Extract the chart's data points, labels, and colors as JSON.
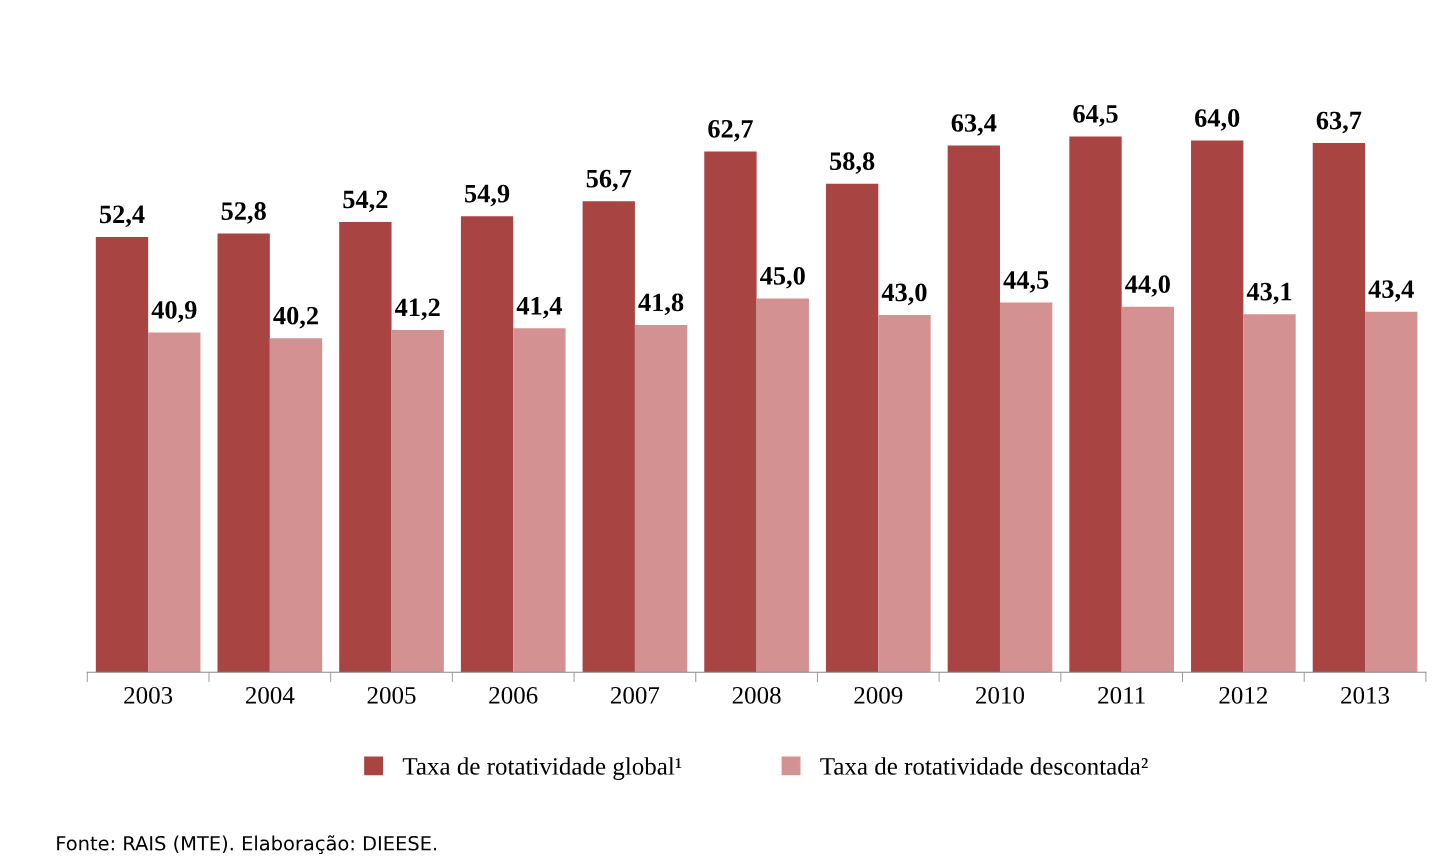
{
  "chart_data": {
    "type": "bar",
    "categories": [
      "2003",
      "2004",
      "2005",
      "2006",
      "2007",
      "2008",
      "2009",
      "2010",
      "2011",
      "2012",
      "2013"
    ],
    "series": [
      {
        "name": "Taxa de rotatividade global¹",
        "color": "#a84442",
        "values": [
          52.4,
          52.8,
          54.2,
          54.9,
          56.7,
          62.7,
          58.8,
          63.4,
          64.5,
          64.0,
          63.7
        ],
        "value_labels": [
          "52,4",
          "52,8",
          "54,2",
          "54,9",
          "56,7",
          "62,7",
          "58,8",
          "63,4",
          "64,5",
          "64,0",
          "63,7"
        ]
      },
      {
        "name": "Taxa de rotatividade descontada²",
        "color": "#d39291",
        "values": [
          40.9,
          40.2,
          41.2,
          41.4,
          41.8,
          45.0,
          43.0,
          44.5,
          44.0,
          43.1,
          43.4
        ],
        "value_labels": [
          "40,9",
          "40,2",
          "41,2",
          "41,4",
          "41,8",
          "45,0",
          "43,0",
          "44,5",
          "44,0",
          "43,1",
          "43,4"
        ]
      }
    ],
    "tick_labels": "x",
    "grid": false,
    "legend": "bottom",
    "annotations": [
      "Fonte: RAIS (MTE). Elaboração: DIEESE."
    ]
  }
}
